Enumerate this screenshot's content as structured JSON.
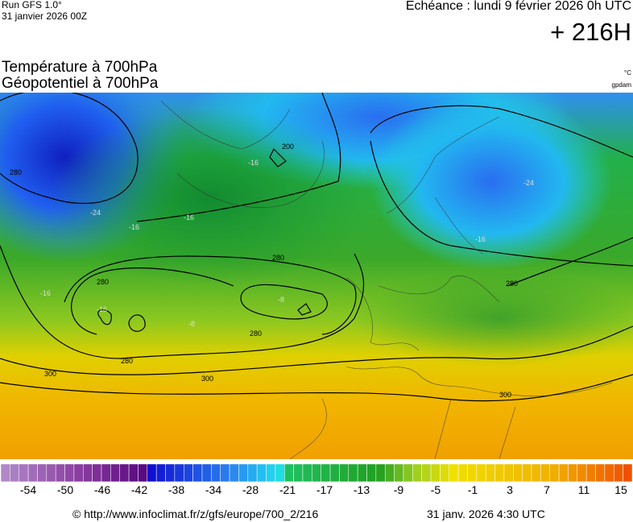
{
  "header": {
    "run": "Run GFS 1.0°",
    "run_date": "31 janvier 2026 00Z",
    "valid_time": "Echéance : lundi 9 février 2026 0h UTC",
    "lead": "+ 216H"
  },
  "titles": [
    "Température à 700hPa",
    "Géopotentiel à 700hPa"
  ],
  "units": [
    "°C",
    "gpdam"
  ],
  "map": {
    "contour_labels": [
      "280",
      "280",
      "280",
      "280",
      "280",
      "300",
      "300",
      "300",
      "200",
      "280"
    ],
    "temperature_labels": [
      "-24",
      "-16",
      "-16",
      "-16",
      "-24",
      "-16",
      "-8",
      "-8",
      "-16",
      "-16"
    ]
  },
  "colorbar": {
    "labels": [
      "-54",
      "-50",
      "-46",
      "-42",
      "-38",
      "-34",
      "-28",
      "-21",
      "-17",
      "-13",
      "-9",
      "-5",
      "-1",
      "3",
      "7",
      "11",
      "15"
    ]
  },
  "footer": {
    "source": "© http://www.infoclimat.fr/z/gfs/europe/700_2/216",
    "generated": "31 janv. 2026  4:30 UTC"
  }
}
